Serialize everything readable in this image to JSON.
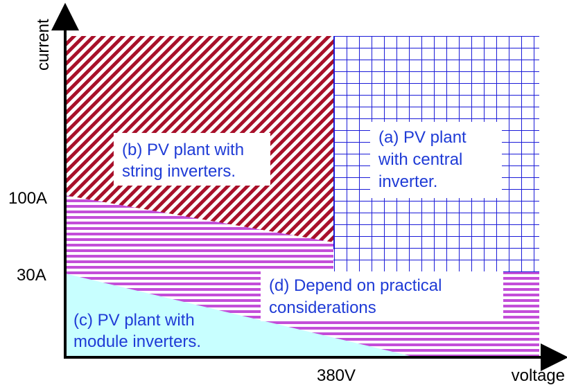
{
  "axes": {
    "y_label": "current",
    "x_label": "voltage",
    "y_ticks": [
      "100A",
      "30A"
    ],
    "x_ticks": [
      "380V"
    ]
  },
  "regions": {
    "a": {
      "line1": "(a) PV plant",
      "line2": "with central",
      "line3": "inverter."
    },
    "b": {
      "line1": "(b) PV plant with",
      "line2": "string inverters."
    },
    "c": {
      "line1": "(c) PV plant with",
      "line2": "module inverters."
    },
    "d": {
      "line1": "(d) Depend on practical",
      "line2": "considerations"
    }
  },
  "colors": {
    "text_blue": "#1f3bd6",
    "grid_blue": "#1a1ad8",
    "stripe_red": "#a8102a",
    "stripe_purple": "#c34ed9",
    "fill_cyan": "#c8ffff",
    "axis": "#000000"
  }
}
